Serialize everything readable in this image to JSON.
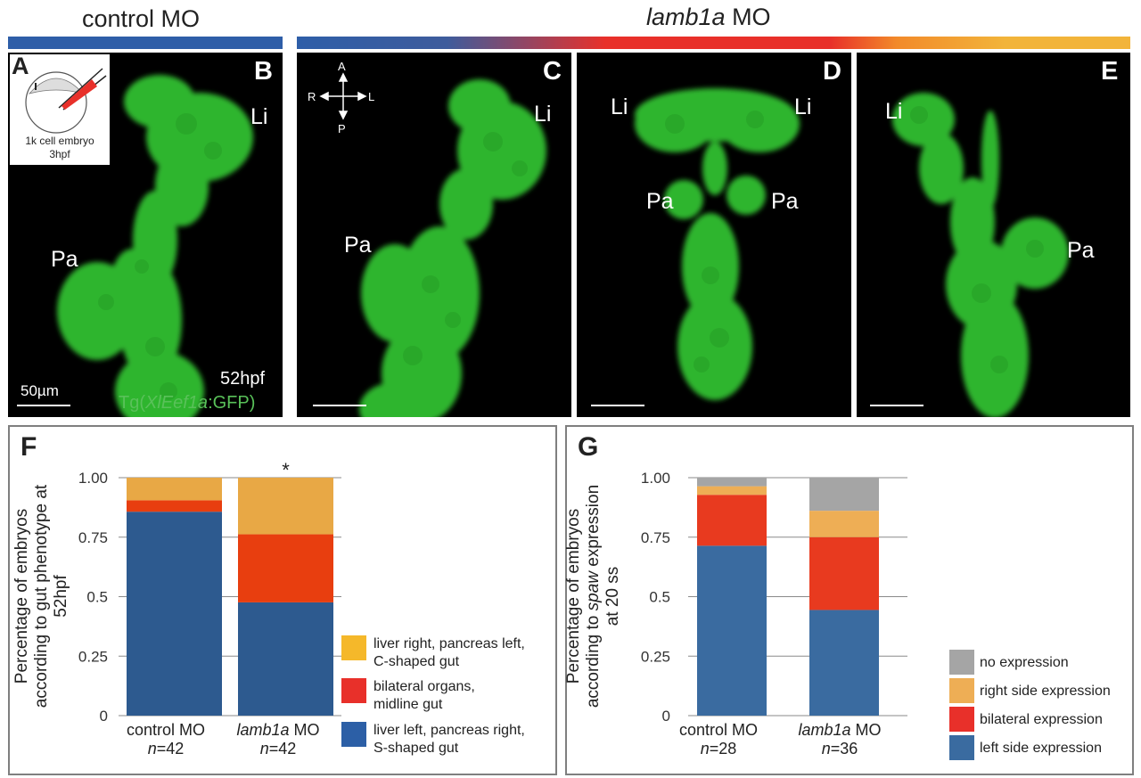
{
  "header": {
    "control_title": "control MO",
    "lamb_title_gene": "lamb1a",
    "lamb_title_suffix": " MO"
  },
  "colors": {
    "control_bar": "#2e5ea8",
    "gradient": [
      "#2e5ea8",
      "#e8302a",
      "#f2b43a"
    ],
    "gfp_text": "#59c159"
  },
  "panels": {
    "A": {
      "label": "A",
      "inset_line1": "1k cell embryo",
      "inset_line2": "3hpf"
    },
    "B": {
      "label": "B",
      "liver": "Li",
      "pancreas": "Pa",
      "scale_text": "50µm",
      "stage": "52hpf",
      "transgene_prefix": "Tg(",
      "transgene_gene": "XlEef1a",
      "transgene_suffix": ":GFP)"
    },
    "C": {
      "label": "C",
      "liver": "Li",
      "pancreas": "Pa",
      "axis": {
        "anterior": "A",
        "posterior": "P",
        "right": "R",
        "left": "L"
      }
    },
    "D": {
      "label": "D",
      "liver_left": "Li",
      "liver_right": "Li",
      "pancreas_left": "Pa",
      "pancreas_right": "Pa"
    },
    "E": {
      "label": "E",
      "liver": "Li",
      "pancreas": "Pa"
    }
  },
  "chart_data": [
    {
      "panel": "F",
      "type": "bar",
      "stacked": true,
      "ylabel": "Percentage of embryos according to gut phenotype at 52hpf",
      "ylim": [
        0,
        1
      ],
      "yticks": [
        "0",
        "0.25",
        "0.5",
        "0.75",
        "1.00"
      ],
      "categories": [
        "control MO",
        "lamb1a MO"
      ],
      "category_genes": [
        "control",
        "lamb1a"
      ],
      "category_n": [
        "=42",
        "=42"
      ],
      "significance": [
        "",
        "*"
      ],
      "series": [
        {
          "name": "liver left, pancreas right, S-shaped gut",
          "color": "#2d5a8f",
          "values": [
            0.857,
            0.476
          ]
        },
        {
          "name": "bilateral organs, midline gut",
          "color": "#e83e0f",
          "values": [
            0.048,
            0.286
          ]
        },
        {
          "name": "liver right, pancreas left, C-shaped gut",
          "color": "#e8a845",
          "values": [
            0.095,
            0.238
          ]
        }
      ],
      "legend": [
        {
          "line1": "liver right, pancreas left,",
          "line2": "C-shaped gut",
          "color": "#f5b82a"
        },
        {
          "line1": "bilateral organs,",
          "line2": "midline gut",
          "color": "#e8302a"
        },
        {
          "line1": "liver left, pancreas right,",
          "line2": "S-shaped gut",
          "color": "#2c5fa6"
        }
      ],
      "grid": true
    },
    {
      "panel": "G",
      "type": "bar",
      "stacked": true,
      "ylabel_prefix": "Percentage of embryos according to ",
      "ylabel_gene": "spaw",
      "ylabel_suffix": " expression at 20 ss",
      "ylim": [
        0,
        1
      ],
      "yticks": [
        "0",
        "0.25",
        "0.5",
        "0.75",
        "1.00"
      ],
      "categories": [
        "control MO",
        "lamb1a MO"
      ],
      "category_genes": [
        "control",
        "lamb1a"
      ],
      "category_n": [
        "=28",
        "=36"
      ],
      "series": [
        {
          "name": "left side expression",
          "color": "#3a6ba0",
          "values": [
            0.714,
            0.444
          ]
        },
        {
          "name": "bilateral expression",
          "color": "#e83a1f",
          "values": [
            0.214,
            0.306
          ]
        },
        {
          "name": "right side expression",
          "color": "#eeae55",
          "values": [
            0.036,
            0.111
          ]
        },
        {
          "name": "no expression",
          "color": "#a5a5a5",
          "values": [
            0.036,
            0.139
          ]
        }
      ],
      "legend": [
        {
          "label": "no expression",
          "color": "#a5a5a5"
        },
        {
          "label": "right side expression",
          "color": "#eeae55"
        },
        {
          "label": "bilateral expression",
          "color": "#e8302a"
        },
        {
          "label": "left side expression",
          "color": "#3a6ba0"
        }
      ],
      "grid": true
    }
  ]
}
